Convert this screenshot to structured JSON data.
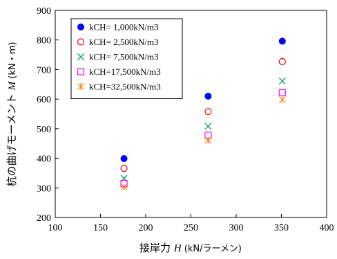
{
  "chart_data": {
    "type": "scatter",
    "xlabel": "接岸力 H (kN/ラーメン)",
    "ylabel": "杭の曲げモーメント M (kN・m)",
    "xlabel_parts": {
      "main": "接岸力 ",
      "var": "H",
      "unit": " (kN/ラーメン)"
    },
    "ylabel_parts": {
      "main": "杭の曲げモーメント ",
      "var": "M",
      "unit": " (kN・m)"
    },
    "xlim": [
      100,
      400
    ],
    "ylim": [
      200,
      900
    ],
    "xticks": [
      100,
      150,
      200,
      250,
      300,
      350,
      400
    ],
    "yticks": [
      200,
      300,
      400,
      500,
      600,
      700,
      800,
      900
    ],
    "grid": false,
    "legend_position": "top-left",
    "series": [
      {
        "name": "kCH=  1,000kN/m3",
        "marker": "filled-circle",
        "color": "#0000ff",
        "points": [
          {
            "x": 176,
            "y": 399
          },
          {
            "x": 269,
            "y": 610
          },
          {
            "x": 351,
            "y": 796
          }
        ]
      },
      {
        "name": "kCH=  2,500kN/m3",
        "marker": "open-circle",
        "color": "#ff0000",
        "points": [
          {
            "x": 176,
            "y": 366
          },
          {
            "x": 269,
            "y": 558
          },
          {
            "x": 351,
            "y": 727
          }
        ]
      },
      {
        "name": "kCH=  7,500kN/m3",
        "marker": "x",
        "color": "#00a050",
        "points": [
          {
            "x": 176,
            "y": 332
          },
          {
            "x": 269,
            "y": 508
          },
          {
            "x": 351,
            "y": 661
          }
        ]
      },
      {
        "name": "kCH=17,500kN/m3",
        "marker": "open-square",
        "color": "#ff00ff",
        "points": [
          {
            "x": 176,
            "y": 314
          },
          {
            "x": 269,
            "y": 478
          },
          {
            "x": 351,
            "y": 622
          }
        ]
      },
      {
        "name": "kCH=32,500kN/m3",
        "marker": "asterisk",
        "color": "#ff8000",
        "points": [
          {
            "x": 176,
            "y": 303
          },
          {
            "x": 269,
            "y": 461
          },
          {
            "x": 351,
            "y": 598
          }
        ]
      }
    ]
  }
}
